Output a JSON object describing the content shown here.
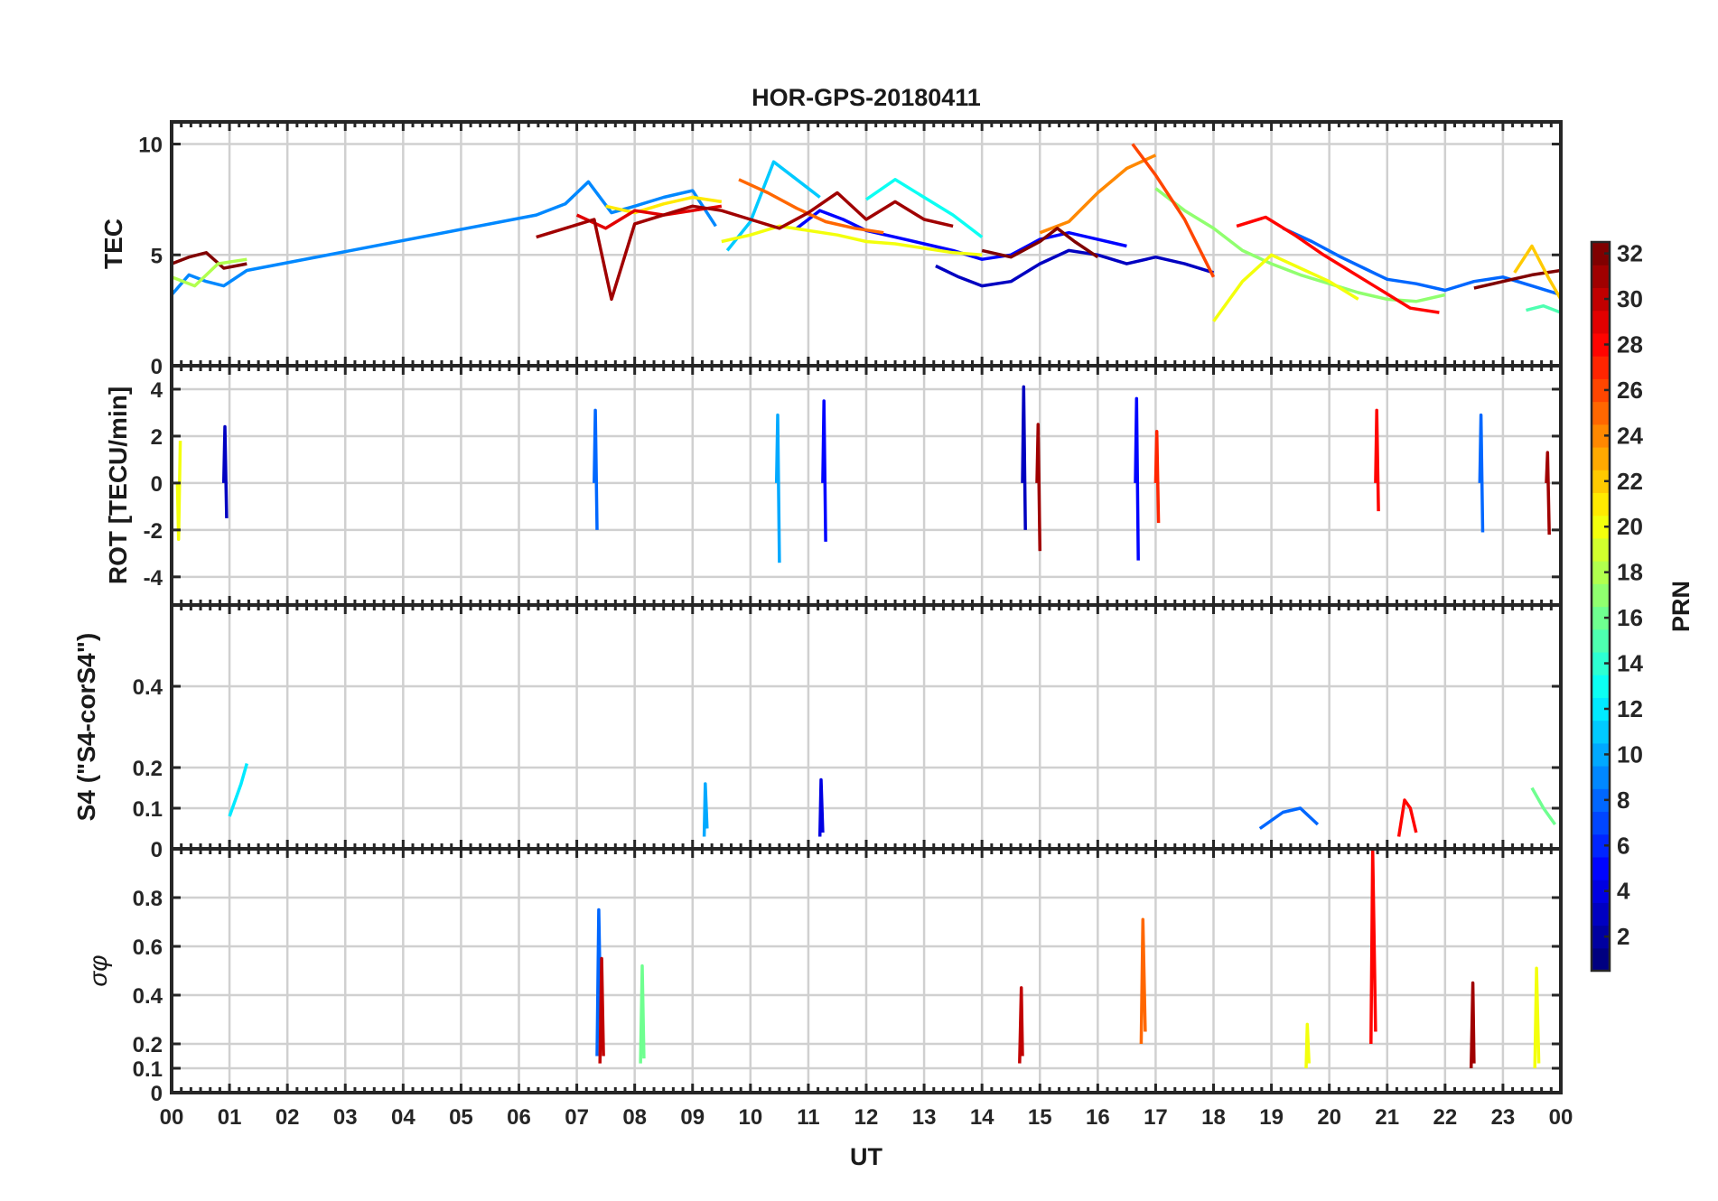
{
  "title": "HOR-GPS-20180411",
  "chart_data": {
    "type": "line",
    "title": "HOR-GPS-20180411",
    "xlabel": "UT",
    "xlim": [
      0,
      24
    ],
    "xticks": [
      "00",
      "01",
      "02",
      "03",
      "04",
      "05",
      "06",
      "07",
      "08",
      "09",
      "10",
      "11",
      "12",
      "13",
      "14",
      "15",
      "16",
      "17",
      "18",
      "19",
      "20",
      "21",
      "22",
      "23",
      "00"
    ],
    "colorbar": {
      "label": "PRN",
      "range": [
        1,
        32
      ],
      "ticks": [
        2,
        4,
        6,
        8,
        10,
        12,
        14,
        16,
        18,
        20,
        22,
        24,
        26,
        28,
        30,
        32
      ]
    },
    "data_gaps": [
      [
        1.35,
        6.25
      ]
    ],
    "panels": [
      {
        "id": "tec",
        "ylabel": "TEC",
        "ylim": [
          0,
          11
        ],
        "yticks": [
          0,
          5,
          10
        ],
        "ytick_labels": [
          "0",
          "5",
          "10"
        ],
        "series": [
          {
            "prn": 9,
            "x": [
              0,
              0.3,
              0.6,
              0.9,
              1.3,
              6.3,
              6.8,
              7.2,
              7.6,
              8.0,
              8.5,
              9.0,
              9.4
            ],
            "y": [
              3.2,
              4.1,
              3.8,
              3.6,
              4.3,
              6.8,
              7.3,
              8.3,
              6.9,
              7.2,
              7.6,
              7.9,
              6.3
            ]
          },
          {
            "prn": 5,
            "x": [
              10.8,
              11.2,
              11.6,
              12.0,
              12.5,
              13.0,
              13.5,
              14.0,
              14.5,
              15.0,
              15.5,
              16.0,
              16.5
            ],
            "y": [
              6.2,
              7.0,
              6.6,
              6.1,
              5.8,
              5.5,
              5.2,
              4.8,
              5.0,
              5.7,
              6.0,
              5.7,
              5.4
            ]
          },
          {
            "prn": 3,
            "x": [
              13.2,
              13.6,
              14.0,
              14.5,
              15.0,
              15.5,
              16.0,
              16.5,
              17.0,
              17.5,
              18.0
            ],
            "y": [
              4.5,
              4.0,
              3.6,
              3.8,
              4.6,
              5.2,
              5.0,
              4.6,
              4.9,
              4.6,
              4.2
            ]
          },
          {
            "prn": 11,
            "x": [
              9.6,
              10.0,
              10.4,
              10.8,
              11.2
            ],
            "y": [
              5.2,
              6.5,
              9.2,
              8.4,
              7.6
            ]
          },
          {
            "prn": 8,
            "x": [
              19.2,
              19.7,
              20.2,
              20.6,
              21.0,
              21.5,
              22.0,
              22.5,
              23.0,
              23.5,
              24.0
            ],
            "y": [
              6.2,
              5.6,
              4.9,
              4.4,
              3.9,
              3.7,
              3.4,
              3.8,
              4.0,
              3.6,
              3.2
            ]
          },
          {
            "prn": 13,
            "x": [
              12.0,
              12.5,
              13.0,
              13.5,
              14.0
            ],
            "y": [
              7.5,
              8.4,
              7.6,
              6.8,
              5.8
            ]
          },
          {
            "prn": 17,
            "x": [
              17.0,
              17.5,
              18.0,
              18.5,
              19.0,
              19.5,
              20.0,
              20.5,
              21.0,
              21.5,
              22.0
            ],
            "y": [
              8.0,
              7.0,
              6.2,
              5.2,
              4.6,
              4.1,
              3.7,
              3.3,
              3.0,
              2.9,
              3.2
            ]
          },
          {
            "prn": 20,
            "x": [
              9.5,
              10.0,
              10.5,
              11.0,
              11.5,
              12.0,
              12.5,
              13.0,
              13.5,
              14.0
            ],
            "y": [
              5.6,
              5.9,
              6.3,
              6.1,
              5.9,
              5.6,
              5.5,
              5.3,
              5.1,
              5.0
            ]
          },
          {
            "prn": 21,
            "x": [
              7.5,
              8.0,
              8.5,
              9.0,
              9.5
            ],
            "y": [
              7.2,
              6.9,
              7.3,
              7.6,
              7.4
            ]
          },
          {
            "prn": 20,
            "x": [
              18.0,
              18.5,
              19.0,
              19.5,
              20.0,
              20.5
            ],
            "y": [
              2.0,
              3.8,
              5.0,
              4.4,
              3.8,
              3.0
            ]
          },
          {
            "prn": 25,
            "x": [
              9.8,
              10.3,
              10.8,
              11.3,
              11.8,
              12.3
            ],
            "y": [
              8.4,
              7.8,
              7.1,
              6.5,
              6.2,
              6.0
            ]
          },
          {
            "prn": 24,
            "x": [
              15.0,
              15.5,
              16.0,
              16.5,
              17.0
            ],
            "y": [
              6.0,
              6.5,
              7.8,
              8.9,
              9.5
            ]
          },
          {
            "prn": 26,
            "x": [
              16.6,
              17.0,
              17.5,
              18.0
            ],
            "y": [
              10.0,
              8.6,
              6.6,
              4.0
            ]
          },
          {
            "prn": 28,
            "x": [
              18.4,
              18.9,
              19.4,
              19.9,
              20.4,
              20.9,
              21.4,
              21.9
            ],
            "y": [
              6.3,
              6.7,
              5.9,
              5.0,
              4.2,
              3.4,
              2.6,
              2.4
            ]
          },
          {
            "prn": 29,
            "x": [
              7.0,
              7.5,
              8.0,
              8.5,
              9.0,
              9.5
            ],
            "y": [
              6.8,
              6.2,
              7.0,
              6.8,
              7.0,
              7.2
            ]
          },
          {
            "prn": 31,
            "x": [
              6.3,
              6.8,
              7.3,
              7.6,
              8.0,
              8.5,
              9.0,
              9.5,
              10.0,
              10.5,
              11.0,
              11.5,
              12.0,
              12.5,
              13.0,
              13.5
            ],
            "y": [
              5.8,
              6.2,
              6.6,
              3.0,
              6.4,
              6.8,
              7.2,
              7.0,
              6.6,
              6.2,
              6.9,
              7.8,
              6.6,
              7.4,
              6.6,
              6.3
            ]
          },
          {
            "prn": 32,
            "x": [
              14.0,
              14.5,
              15.0,
              15.3,
              15.6,
              16.0
            ],
            "y": [
              5.2,
              4.9,
              5.6,
              6.2,
              5.6,
              4.9
            ]
          },
          {
            "prn": 32,
            "x": [
              0,
              0.3,
              0.6,
              0.9,
              1.3
            ],
            "y": [
              4.6,
              4.9,
              5.1,
              4.4,
              4.6
            ]
          },
          {
            "prn": 32,
            "x": [
              22.5,
              23.0,
              23.5,
              24.0
            ],
            "y": [
              3.5,
              3.8,
              4.1,
              4.3
            ]
          },
          {
            "prn": 18,
            "x": [
              0,
              0.4,
              0.8,
              1.3
            ],
            "y": [
              4.0,
              3.6,
              4.6,
              4.8
            ]
          },
          {
            "prn": 22,
            "x": [
              23.2,
              23.5,
              23.8,
              24.0
            ],
            "y": [
              4.2,
              5.4,
              3.9,
              3.0
            ]
          },
          {
            "prn": 15,
            "x": [
              23.4,
              23.7,
              24.0
            ],
            "y": [
              2.5,
              2.7,
              2.4
            ]
          }
        ]
      },
      {
        "id": "rot",
        "ylabel": "ROT [TECU/min]",
        "ylim": [
          -5.2,
          5
        ],
        "yticks": [
          -4,
          -2,
          0,
          2,
          4
        ],
        "ytick_labels": [
          "-4",
          "-2",
          "0",
          "2",
          "4"
        ],
        "series": [
          {
            "prn": 3,
            "x": [
              0.9,
              0.92,
              0.95
            ],
            "y": [
              0,
              2.4,
              -1.5
            ]
          },
          {
            "prn": 20,
            "x": [
              0.1,
              0.12,
              0.15
            ],
            "y": [
              0,
              -2.4,
              1.8
            ]
          },
          {
            "prn": 8,
            "x": [
              7.3,
              7.32,
              7.35
            ],
            "y": [
              0,
              3.1,
              -2.0
            ]
          },
          {
            "prn": 10,
            "x": [
              10.45,
              10.47,
              10.5
            ],
            "y": [
              0,
              2.9,
              -3.4
            ]
          },
          {
            "prn": 5,
            "x": [
              11.25,
              11.27,
              11.3
            ],
            "y": [
              0,
              3.5,
              -2.5
            ]
          },
          {
            "prn": 3,
            "x": [
              14.7,
              14.72,
              14.75
            ],
            "y": [
              0,
              4.1,
              -2.0
            ]
          },
          {
            "prn": 31,
            "x": [
              14.95,
              14.97,
              15.0
            ],
            "y": [
              0,
              2.5,
              -2.9
            ]
          },
          {
            "prn": 5,
            "x": [
              16.65,
              16.67,
              16.7
            ],
            "y": [
              0,
              3.6,
              -3.3
            ]
          },
          {
            "prn": 27,
            "x": [
              17.0,
              17.02,
              17.05
            ],
            "y": [
              0,
              2.2,
              -1.7
            ]
          },
          {
            "prn": 28,
            "x": [
              20.8,
              20.82,
              20.85
            ],
            "y": [
              0,
              3.1,
              -1.2
            ]
          },
          {
            "prn": 8,
            "x": [
              22.6,
              22.62,
              22.65
            ],
            "y": [
              0,
              2.9,
              -2.1
            ]
          },
          {
            "prn": 31,
            "x": [
              23.75,
              23.77,
              23.8
            ],
            "y": [
              0,
              1.3,
              -2.2
            ]
          }
        ]
      },
      {
        "id": "s4",
        "ylabel": "S4 (\"S4-corS4\")",
        "ylim": [
          0,
          0.6
        ],
        "yticks": [
          0,
          0.1,
          0.2,
          0.4
        ],
        "ytick_labels": [
          "0",
          "0.1",
          "0.2",
          "0.4"
        ],
        "series": [
          {
            "prn": 12,
            "x": [
              1.0,
              1.1,
              1.2,
              1.3
            ],
            "y": [
              0.08,
              0.12,
              0.16,
              0.21
            ]
          },
          {
            "prn": 10,
            "x": [
              9.2,
              9.22,
              9.25
            ],
            "y": [
              0.03,
              0.16,
              0.05
            ]
          },
          {
            "prn": 4,
            "x": [
              11.2,
              11.22,
              11.25
            ],
            "y": [
              0.03,
              0.17,
              0.04
            ]
          },
          {
            "prn": 28,
            "x": [
              21.2,
              21.3,
              21.4,
              21.5
            ],
            "y": [
              0.03,
              0.12,
              0.1,
              0.04
            ]
          },
          {
            "prn": 16,
            "x": [
              23.5,
              23.7,
              23.9
            ],
            "y": [
              0.15,
              0.1,
              0.06
            ]
          },
          {
            "prn": 8,
            "x": [
              18.8,
              19.2,
              19.5,
              19.8
            ],
            "y": [
              0.05,
              0.09,
              0.1,
              0.06
            ]
          }
        ]
      },
      {
        "id": "sigma_phi",
        "ylabel": "σφ",
        "ylim": [
          0,
          1
        ],
        "yticks": [
          0,
          0.1,
          0.2,
          0.4,
          0.6,
          0.8
        ],
        "ytick_labels": [
          "0",
          "0.1",
          "0.2",
          "0.4",
          "0.6",
          "0.8"
        ],
        "series": [
          {
            "prn": 8,
            "x": [
              7.35,
              7.38,
              7.42
            ],
            "y": [
              0.15,
              0.75,
              0.2
            ]
          },
          {
            "prn": 30,
            "x": [
              7.4,
              7.43,
              7.46
            ],
            "y": [
              0.12,
              0.55,
              0.15
            ]
          },
          {
            "prn": 16,
            "x": [
              8.1,
              8.13,
              8.16
            ],
            "y": [
              0.12,
              0.52,
              0.14
            ]
          },
          {
            "prn": 25,
            "x": [
              16.75,
              16.78,
              16.82
            ],
            "y": [
              0.2,
              0.71,
              0.25
            ]
          },
          {
            "prn": 28,
            "x": [
              20.72,
              20.75,
              20.8
            ],
            "y": [
              0.2,
              1.0,
              0.25
            ]
          },
          {
            "prn": 30,
            "x": [
              14.65,
              14.68,
              14.7
            ],
            "y": [
              0.12,
              0.43,
              0.15
            ]
          },
          {
            "prn": 31,
            "x": [
              22.45,
              22.48,
              22.5
            ],
            "y": [
              0.1,
              0.45,
              0.12
            ]
          },
          {
            "prn": 20,
            "x": [
              23.55,
              23.58,
              23.62
            ],
            "y": [
              0.1,
              0.51,
              0.12
            ]
          },
          {
            "prn": 20,
            "x": [
              19.6,
              19.62,
              19.65
            ],
            "y": [
              0.1,
              0.28,
              0.12
            ]
          }
        ]
      }
    ]
  }
}
